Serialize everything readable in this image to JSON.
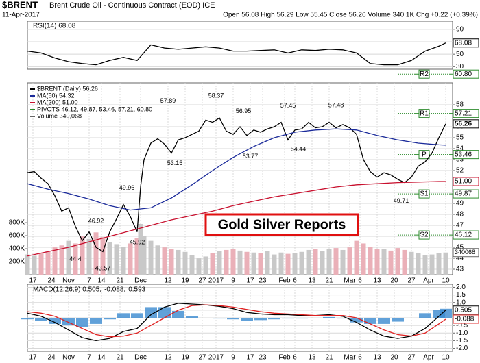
{
  "header": {
    "symbol": "$BRENT",
    "name": "Brent Crude Oil - Continuous Contract (EOD) ICE",
    "date": "11-Apr-2017",
    "quote": "Open 56.08  High 56.29  Low 55.45  Close 56.26  Volume 340.1K  Chg +0.22 (+0.39%)"
  },
  "chart_data": [
    {
      "type": "rsi",
      "xlim": [
        0,
        124
      ],
      "ylim": [
        26,
        103
      ],
      "yticks": [
        30,
        50,
        70,
        90
      ],
      "grid": true,
      "x": [
        0,
        4,
        8,
        12,
        16,
        20,
        24,
        28,
        32,
        36,
        40,
        44,
        48,
        52,
        56,
        60,
        64,
        68,
        72,
        76,
        80,
        84,
        88,
        92,
        96,
        100,
        104,
        108,
        112,
        116,
        120,
        122
      ],
      "series": [
        {
          "name": "RSI(14) 68.08",
          "color": "#000000",
          "values": [
            55,
            52,
            44,
            38,
            35,
            33,
            40,
            45,
            40,
            65,
            60,
            58,
            60,
            62,
            60,
            55,
            55,
            56,
            57,
            52,
            57,
            56,
            58,
            57,
            52,
            35,
            33,
            33,
            40,
            55,
            63,
            68.08
          ]
        }
      ]
    },
    {
      "type": "price",
      "xlim": [
        0,
        124
      ],
      "ylim": [
        42.5,
        60
      ],
      "grid": true,
      "yticks": [
        43,
        44,
        45,
        46,
        47,
        48,
        49,
        50,
        52,
        53,
        54,
        55,
        56,
        58
      ],
      "xticks": [
        {
          "value": 1.6,
          "label": "17"
        },
        {
          "value": 7,
          "label": "24"
        },
        {
          "value": 12,
          "label": "Nov"
        },
        {
          "value": 18,
          "label": "7"
        },
        {
          "value": 21.6,
          "label": "14"
        },
        {
          "value": 27,
          "label": "21"
        },
        {
          "value": 33,
          "label": "Dec"
        },
        {
          "value": 41,
          "label": "12"
        },
        {
          "value": 46,
          "label": "19"
        },
        {
          "value": 51,
          "label": "27"
        },
        {
          "value": 55,
          "label": "2017"
        },
        {
          "value": 60,
          "label": "9"
        },
        {
          "value": 65,
          "label": "17"
        },
        {
          "value": 68.6,
          "label": "23"
        },
        {
          "value": 75,
          "label": "Feb"
        },
        {
          "value": 78,
          "label": "6"
        },
        {
          "value": 83,
          "label": "13"
        },
        {
          "value": 88,
          "label": "21"
        },
        {
          "value": 94,
          "label": "Mar"
        },
        {
          "value": 97,
          "label": "6"
        },
        {
          "value": 102,
          "label": "13"
        },
        {
          "value": 107,
          "label": "20"
        },
        {
          "value": 112,
          "label": "27"
        },
        {
          "value": 117,
          "label": "Apr"
        },
        {
          "value": 122,
          "label": "10"
        }
      ],
      "x": [
        0,
        2,
        4,
        6,
        8,
        10,
        12,
        14,
        16,
        18,
        20,
        22,
        24,
        26,
        28,
        30,
        32,
        33,
        34,
        36,
        38,
        40,
        42,
        44,
        46,
        48,
        50,
        52,
        54,
        56,
        58,
        60,
        62,
        64,
        66,
        68,
        70,
        72,
        74,
        76,
        78,
        80,
        82,
        84,
        86,
        88,
        90,
        92,
        94,
        96,
        98,
        100,
        102,
        104,
        106,
        108,
        110,
        112,
        114,
        116,
        118,
        120,
        122
      ],
      "series": [
        {
          "name": "$BRENT (Daily) 56.26",
          "color": "#000000",
          "values": [
            51.8,
            51.9,
            51.3,
            50.8,
            49.7,
            48.3,
            48.6,
            46.9,
            45.6,
            46.4,
            45.0,
            44.6,
            46.4,
            47.6,
            48.9,
            47.8,
            46.4,
            50.5,
            53.0,
            54.5,
            54.9,
            54.4,
            53.6,
            54.8,
            55.0,
            55.3,
            55.6,
            56.6,
            56.4,
            56.8,
            55.6,
            55.3,
            56.0,
            55.2,
            55.7,
            55.5,
            55.8,
            56.0,
            56.4,
            54.8,
            55.7,
            55.8,
            56.4,
            55.9,
            56.0,
            56.4,
            55.9,
            56.2,
            55.9,
            55.3,
            53.0,
            51.9,
            51.4,
            51.8,
            51.6,
            51.2,
            50.9,
            51.4,
            52.4,
            52.8,
            53.6,
            55.0,
            56.26
          ]
        },
        {
          "name": "MA(50) 54.32",
          "color": "#1a2a9a",
          "x": [
            0,
            6,
            12,
            18,
            24,
            30,
            36,
            42,
            48,
            54,
            60,
            66,
            72,
            78,
            84,
            90,
            96,
            102,
            108,
            114,
            120,
            122
          ],
          "values": [
            50.8,
            50.3,
            49.9,
            49.4,
            48.8,
            48.4,
            48.6,
            49.5,
            50.7,
            52.0,
            53.2,
            54.2,
            55.0,
            55.5,
            55.7,
            55.8,
            55.7,
            55.2,
            54.8,
            54.5,
            54.35,
            54.32
          ]
        },
        {
          "name": "MA(200) 51.00",
          "color": "#c8102e",
          "x": [
            0,
            6,
            12,
            18,
            24,
            30,
            36,
            42,
            48,
            54,
            60,
            66,
            72,
            78,
            84,
            90,
            96,
            102,
            108,
            114,
            120,
            122
          ],
          "values": [
            44.2,
            44.6,
            45.0,
            45.5,
            46.0,
            46.5,
            47.0,
            47.5,
            47.9,
            48.3,
            48.8,
            49.2,
            49.6,
            49.9,
            50.2,
            50.5,
            50.7,
            50.8,
            50.9,
            50.95,
            51.0,
            51.0
          ]
        }
      ],
      "pivots": {
        "name": "PIVOTS 46.12, 49.87, 53.46, 57.21, 60.80",
        "color": "#2a8a2a",
        "levels": [
          {
            "name": "S2",
            "value": 46.12,
            "label": "46.12"
          },
          {
            "name": "S1",
            "value": 49.87,
            "label": "49.87"
          },
          {
            "name": "P",
            "value": 53.46,
            "label": "53.46"
          },
          {
            "name": "R1",
            "value": 57.21,
            "label": "57.21"
          },
          {
            "name": "R2",
            "value": 60.8,
            "label": "60.80"
          }
        ]
      },
      "tags": [
        {
          "value": 51.0,
          "label": "51.00",
          "color": "#c8102e"
        }
      ],
      "volume": {
        "name": "Volume 340,068",
        "up_color": "#c8c8c8",
        "down_color": "#eab0b8",
        "ylim": [
          0,
          2950000
        ],
        "yticks": [
          {
            "value": 200000,
            "label": "200K"
          },
          {
            "value": 400000,
            "label": "400K"
          },
          {
            "value": 600000,
            "label": "600K"
          },
          {
            "value": 800000,
            "label": "800K"
          }
        ],
        "values": [
          310000,
          290000,
          330000,
          360000,
          420000,
          450000,
          520000,
          480000,
          600000,
          550000,
          650000,
          580000,
          500000,
          470000,
          430000,
          480000,
          560000,
          780000,
          600000,
          520000,
          450000,
          420000,
          400000,
          380000,
          350000,
          300000,
          250000,
          280000,
          330000,
          360000,
          380000,
          400000,
          370000,
          350000,
          340000,
          330000,
          360000,
          310000,
          340000,
          320000,
          330000,
          350000,
          380000,
          400000,
          360000,
          390000,
          410000,
          380000,
          420000,
          520000,
          480000,
          430000,
          400000,
          390000,
          370000,
          410000,
          380000,
          350000,
          330000,
          300000,
          310000,
          330000,
          340068
        ]
      },
      "annotations": [
        {
          "x": 41,
          "value": 57.89
        },
        {
          "x": 55,
          "value": 58.37
        },
        {
          "x": 63,
          "value": 56.95
        },
        {
          "x": 76,
          "value": 57.45
        },
        {
          "x": 90,
          "value": 57.48
        },
        {
          "x": 43,
          "value": 53.15
        },
        {
          "x": 65,
          "value": 53.77
        },
        {
          "x": 79,
          "value": 54.44
        },
        {
          "x": 29,
          "value": 49.96
        },
        {
          "x": 20,
          "value": 46.92
        },
        {
          "x": 32,
          "value": 45.92
        },
        {
          "x": 14,
          "value": 44.4
        },
        {
          "x": 22,
          "value": 43.57
        },
        {
          "x": 109,
          "value": 49.71
        }
      ],
      "watermark": "Gold Silver Reports"
    },
    {
      "type": "macd",
      "xlim": [
        0,
        124
      ],
      "ylim": [
        -2.2,
        2.2
      ],
      "grid": true,
      "yticks": [
        {
          "value": -2,
          "label": "-2.0"
        },
        {
          "value": -1.5,
          "label": "-1.5"
        },
        {
          "value": -1,
          "label": "-1.0"
        },
        {
          "value": -0.5,
          "label": "-0.5"
        },
        {
          "value": 0,
          "label": "0.0"
        },
        {
          "value": 0.5,
          "label": "0.5"
        },
        {
          "value": 1,
          "label": "1.0"
        },
        {
          "value": 1.5,
          "label": "1.5"
        },
        {
          "value": 2,
          "label": "2.0"
        }
      ],
      "xticks": [
        {
          "value": 1.6,
          "label": "17"
        },
        {
          "value": 7,
          "label": "24"
        },
        {
          "value": 12,
          "label": "Nov"
        },
        {
          "value": 18,
          "label": "7"
        },
        {
          "value": 21.6,
          "label": "14"
        },
        {
          "value": 27,
          "label": "21"
        },
        {
          "value": 33,
          "label": "Dec"
        },
        {
          "value": 41,
          "label": "12"
        },
        {
          "value": 46,
          "label": "19"
        },
        {
          "value": 51,
          "label": "27"
        },
        {
          "value": 55,
          "label": "2017"
        },
        {
          "value": 60,
          "label": "9"
        },
        {
          "value": 65,
          "label": "17"
        },
        {
          "value": 68.6,
          "label": "23"
        },
        {
          "value": 75,
          "label": "Feb"
        },
        {
          "value": 78,
          "label": "6"
        },
        {
          "value": 83,
          "label": "13"
        },
        {
          "value": 88,
          "label": "21"
        },
        {
          "value": 94,
          "label": "Mar"
        },
        {
          "value": 97,
          "label": "6"
        },
        {
          "value": 102,
          "label": "13"
        },
        {
          "value": 107,
          "label": "20"
        },
        {
          "value": 112,
          "label": "27"
        },
        {
          "value": 117,
          "label": "Apr"
        },
        {
          "value": 122,
          "label": "10"
        }
      ],
      "x": [
        0,
        4,
        8,
        12,
        16,
        20,
        24,
        28,
        32,
        36,
        40,
        44,
        48,
        52,
        56,
        60,
        64,
        68,
        72,
        76,
        80,
        84,
        88,
        92,
        96,
        100,
        104,
        108,
        112,
        116,
        120,
        122
      ],
      "series": [
        {
          "name": "MACD(12,26,9) 0.505,",
          "color": "#000000",
          "values": [
            0.3,
            0.1,
            -0.3,
            -0.8,
            -1.3,
            -1.5,
            -1.35,
            -0.9,
            -0.7,
            0.2,
            0.7,
            0.95,
            0.9,
            0.85,
            0.75,
            0.6,
            0.35,
            0.25,
            0.2,
            0.2,
            0.15,
            0.15,
            0.2,
            0.1,
            -0.3,
            -0.8,
            -1.2,
            -1.35,
            -1.2,
            -0.7,
            0.1,
            0.505
          ]
        },
        {
          "name": "-0.088,",
          "color": "#e02020",
          "values": [
            0.4,
            0.3,
            0.1,
            -0.3,
            -0.7,
            -1.1,
            -1.25,
            -1.2,
            -1.0,
            -0.5,
            0.0,
            0.5,
            0.8,
            0.85,
            0.8,
            0.7,
            0.55,
            0.4,
            0.3,
            0.25,
            0.2,
            0.15,
            0.15,
            0.15,
            0.0,
            -0.4,
            -0.8,
            -1.1,
            -1.2,
            -1.0,
            -0.4,
            -0.088
          ]
        },
        {
          "name": "0.593",
          "color": "#3a8ad0",
          "mark": "bar",
          "values": [
            -0.1,
            -0.2,
            -0.4,
            -0.5,
            -0.6,
            -0.4,
            -0.1,
            0.3,
            0.3,
            0.7,
            0.7,
            0.45,
            0.1,
            0.0,
            -0.05,
            -0.1,
            -0.2,
            -0.15,
            -0.1,
            -0.05,
            -0.05,
            0,
            0.05,
            -0.05,
            -0.3,
            -0.4,
            -0.4,
            -0.25,
            0,
            0.3,
            0.5,
            0.593
          ]
        }
      ]
    }
  ]
}
